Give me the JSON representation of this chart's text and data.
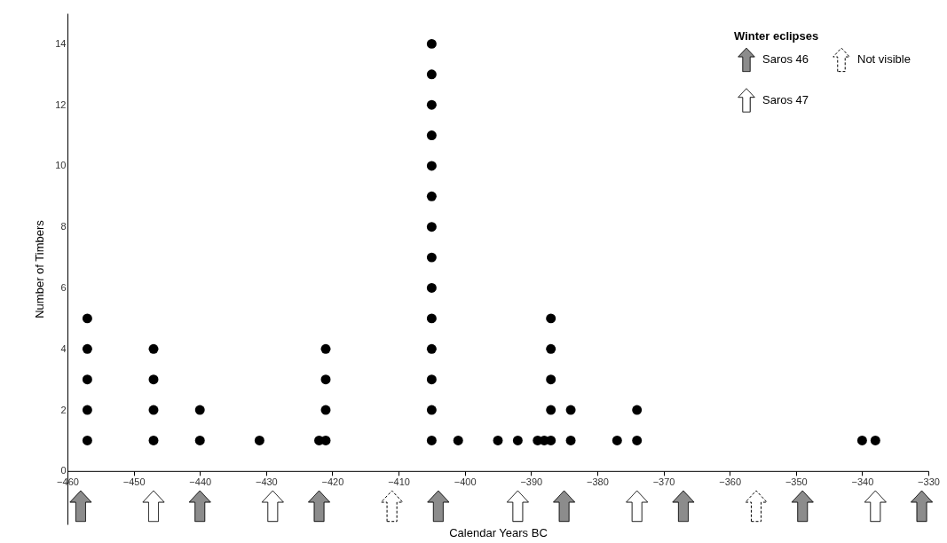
{
  "chart_data": {
    "type": "scatter",
    "xlabel": "Calendar Years BC",
    "ylabel": "Number of Timbers",
    "legend_title": "Winter eclipses",
    "legend": "top right",
    "xlim": [
      -460,
      -330
    ],
    "xticks": [
      -460,
      -450,
      -440,
      -430,
      -420,
      -410,
      -400,
      -390,
      -380,
      -370,
      -360,
      -350,
      -340,
      -330
    ],
    "ylim": [
      -1.75,
      15
    ],
    "yticks": [
      0,
      2,
      4,
      6,
      8,
      10,
      12,
      14
    ],
    "series": [
      {
        "marker": "circle",
        "color": "#000000",
        "x": [
          -457,
          -457,
          -457,
          -457,
          -457,
          -447,
          -447,
          -447,
          -447,
          -440,
          -440,
          -431,
          -422,
          -421,
          -421,
          -421,
          -421,
          -405,
          -405,
          -405,
          -405,
          -405,
          -405,
          -405,
          -405,
          -405,
          -405,
          -405,
          -405,
          -405,
          -405,
          -401,
          -395,
          -392,
          -389,
          -388,
          -387,
          -387,
          -387,
          -387,
          -387,
          -384,
          -384,
          -377,
          -374,
          -374,
          -340,
          -338
        ],
        "values": [
          1,
          2,
          3,
          4,
          5,
          1,
          2,
          3,
          4,
          1,
          2,
          1,
          1,
          1,
          2,
          3,
          4,
          1,
          2,
          3,
          4,
          5,
          6,
          7,
          8,
          9,
          10,
          11,
          12,
          13,
          14,
          1,
          1,
          1,
          1,
          1,
          1,
          2,
          3,
          4,
          5,
          1,
          2,
          1,
          1,
          2,
          1,
          1
        ]
      },
      {
        "name": "Saros 46",
        "color": "#8c8c8c",
        "line_style": "solid",
        "x": [
          -458,
          -440,
          -422,
          -404,
          -385,
          -367,
          -349,
          -331
        ],
        "values": [
          -1.15,
          -1.15,
          -1.15,
          -1.15,
          -1.15,
          -1.15,
          -1.15,
          -1.15
        ]
      },
      {
        "name": "Saros 47",
        "color": "#ffffff",
        "line_style": "solid",
        "x": [
          -447,
          -429,
          -392,
          -374,
          -338
        ],
        "values": [
          -1.15,
          -1.15,
          -1.15,
          -1.15,
          -1.15
        ]
      },
      {
        "name": "Not visible",
        "color": "#ffffff",
        "line_style": "dashed",
        "x": [
          -411,
          -356
        ],
        "values": [
          -1.15,
          -1.15
        ]
      }
    ]
  }
}
